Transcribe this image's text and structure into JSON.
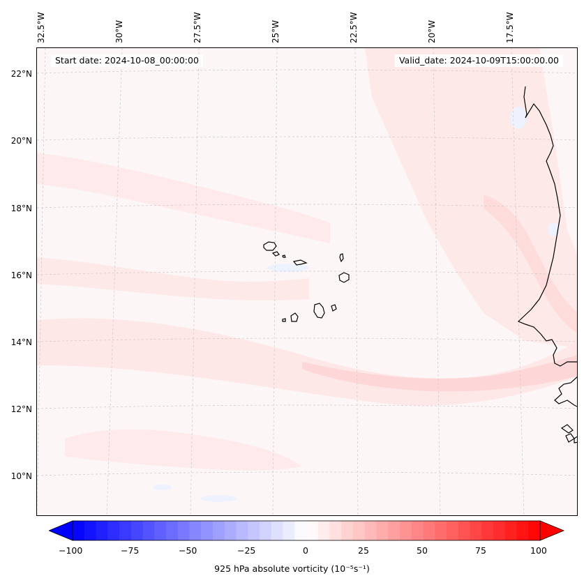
{
  "header": {
    "start_date": "Start date: 2024-10-08_00:00:00",
    "valid_date": "Valid_date: 2024-10-09T15:00:00.00"
  },
  "map": {
    "longitude_labels": [
      "32.5°W",
      "30°W",
      "27.5°W",
      "25°W",
      "22.5°W",
      "20°W",
      "17.5°W"
    ],
    "latitude_labels": [
      "22°N",
      "20°N",
      "18°N",
      "16°N",
      "14°N",
      "12°N",
      "10°N"
    ],
    "field_colors": {
      "background": "#fdf6f6",
      "weak_positive": "#fee6e6",
      "moderate_positive": "#fdd3d3",
      "weak_negative": "#eef2ff",
      "coastline": "#000000",
      "gridline": "#c8c8c8"
    }
  },
  "colorbar": {
    "title": "925 hPa absolute vorticity (10⁻⁵s⁻¹)",
    "tick_labels": [
      "−100",
      "−75",
      "−50",
      "−25",
      "0",
      "25",
      "50",
      "75",
      "100"
    ],
    "range": [
      -100,
      100
    ],
    "min_color": "#0000ff",
    "mid_color": "#ffffff",
    "max_color": "#ff0000"
  }
}
